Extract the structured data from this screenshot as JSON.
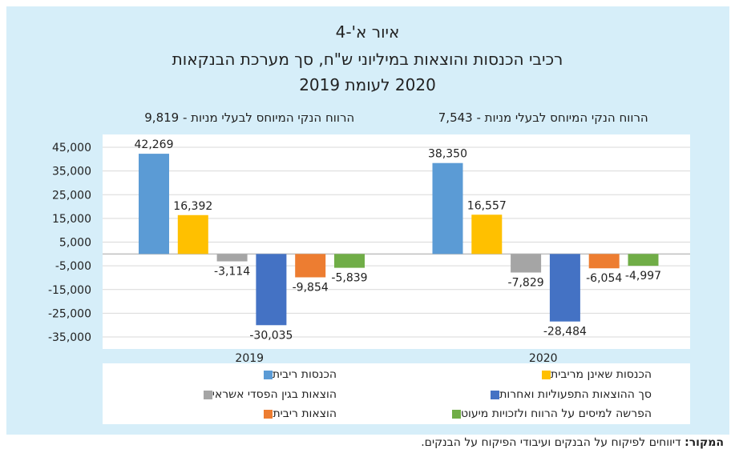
{
  "figure": {
    "title_line1": "איור א'-4",
    "title_line2": "רכיבי הכנסות והוצאות במיליוני ש\"ח, סך מערכת הבנקאות",
    "title_line3": "2020 לעומת 2019"
  },
  "chart_data": {
    "type": "bar",
    "categories": [
      "2019",
      "2020"
    ],
    "group_titles": [
      "הרווח הנקי המיוחס לבעלי מניות - 9,819",
      "הרווח הנקי המיוחס לבעלי מניות - 7,543"
    ],
    "series": [
      {
        "name": "הכנסות ריבית",
        "color": "#5b9bd5",
        "values": [
          42269,
          38350
        ],
        "labels": [
          "42,269",
          "38,350"
        ]
      },
      {
        "name": "הכנסות שאינן מריבית",
        "color": "#ffc000",
        "values": [
          16392,
          16557
        ],
        "labels": [
          "16,392",
          "16,557"
        ]
      },
      {
        "name": "הוצאות בגין הפסדי אשראי",
        "color": "#a5a5a5",
        "values": [
          -3114,
          -7829
        ],
        "labels": [
          "-3,114",
          "-7,829"
        ]
      },
      {
        "name": "סך ההוצאות התפעוליות ואחרות",
        "color": "#4472c4",
        "values": [
          -30035,
          -28484
        ],
        "labels": [
          "-30,035",
          "-28,484"
        ]
      },
      {
        "name": "הוצאות ריבית",
        "color": "#ed7d31",
        "values": [
          -9854,
          -6054
        ],
        "labels": [
          "-9,854",
          "-6,054"
        ]
      },
      {
        "name": "הפרשה למיסים על הרווח ולזכויות מיעוט",
        "color": "#70ad47",
        "values": [
          -5839,
          -4997
        ],
        "labels": [
          "-5,839",
          "-4,997"
        ]
      }
    ],
    "yticks": [
      45000,
      35000,
      25000,
      15000,
      5000,
      -5000,
      -15000,
      -25000,
      -35000
    ],
    "ytick_labels": [
      "45,000",
      "35,000",
      "25,000",
      "15,000",
      "5,000",
      "-5,000",
      "-15,000",
      "-25,000",
      "-35,000"
    ],
    "ylim": [
      -35000,
      45000
    ],
    "grid": true,
    "legend_position": "bottom"
  },
  "source": {
    "label": "המקור:",
    "text": " דיווחים לפיקוח על הבנקים ועיבודי הפיקוח על הבנקים."
  }
}
